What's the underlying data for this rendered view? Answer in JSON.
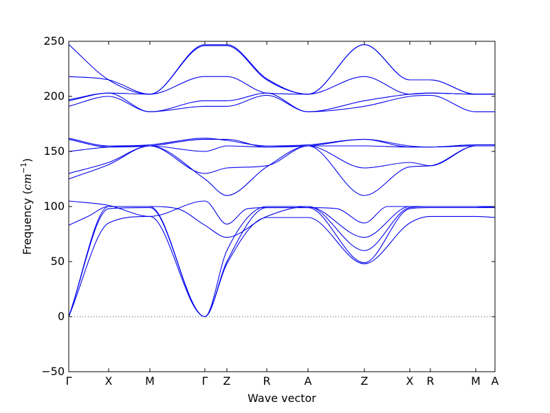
{
  "chart_data": {
    "type": "line",
    "xlabel": "Wave vector",
    "ylabel_text": "Frequency (",
    "ylabel_unit": "cm",
    "ylabel_exp": "−1",
    "ylabel_close": ")",
    "ylim": [
      -50,
      250
    ],
    "yticks": [
      -50,
      0,
      50,
      100,
      150,
      200,
      250
    ],
    "xlim": [
      0,
      3.1
    ],
    "xticks": [
      {
        "label": "Γ",
        "x": 0.0
      },
      {
        "label": "X",
        "x": 0.29
      },
      {
        "label": "M",
        "x": 0.59
      },
      {
        "label": "Γ",
        "x": 0.99
      },
      {
        "label": "Z",
        "x": 1.15
      },
      {
        "label": "R",
        "x": 1.44
      },
      {
        "label": "A",
        "x": 1.74
      },
      {
        "label": "Z",
        "x": 2.15
      },
      {
        "label": "X",
        "x": 2.48
      },
      {
        "label": "R",
        "x": 2.63
      },
      {
        "label": "M",
        "x": 2.96
      },
      {
        "label": "A",
        "x": 3.1
      }
    ],
    "zero_line": true,
    "line_color": "#0000ee",
    "series": [
      {
        "x": [
          0,
          0.29,
          0.59,
          0.99,
          1.15,
          1.44,
          1.74,
          2.15,
          2.48,
          2.63,
          2.96,
          3.1
        ],
        "y": [
          0,
          85,
          91,
          0,
          48,
          90,
          90,
          48,
          85,
          91,
          91,
          90
        ]
      },
      {
        "x": [
          0,
          0.29,
          0.59,
          0.99,
          1.15,
          1.44,
          1.74,
          2.15,
          2.48,
          2.63,
          2.96,
          3.1
        ],
        "y": [
          0,
          98,
          99,
          0,
          50,
          99,
          99,
          49,
          98,
          99,
          99,
          99
        ]
      },
      {
        "x": [
          0,
          0.29,
          0.59,
          0.99,
          1.15,
          1.44,
          1.74,
          2.15,
          2.48,
          2.63,
          2.96,
          3.1
        ],
        "y": [
          0,
          100,
          100,
          0,
          60,
          100,
          100,
          60,
          99,
          100,
          100,
          99
        ]
      },
      {
        "x": [
          0,
          0.14,
          0.29,
          0.59,
          0.79,
          0.99,
          1.15,
          1.44,
          1.74,
          2.15,
          2.48,
          2.63,
          2.96,
          3.1
        ],
        "y": [
          83,
          91,
          100,
          100,
          98,
          83,
          72,
          91,
          100,
          72,
          100,
          100,
          100,
          99
        ]
      },
      {
        "x": [
          0,
          0.29,
          0.59,
          0.99,
          1.15,
          1.3,
          1.44,
          1.74,
          1.95,
          2.15,
          2.32,
          2.48,
          2.63,
          2.96,
          3.1
        ],
        "y": [
          105,
          101,
          91,
          105,
          84,
          98,
          99,
          99,
          98,
          85,
          100,
          100,
          100,
          100,
          100
        ]
      },
      {
        "x": [
          0,
          0.29,
          0.59,
          0.99,
          1.15,
          1.44,
          1.74,
          2.15,
          2.48,
          2.63,
          2.96,
          3.1
        ],
        "y": [
          125,
          138,
          155,
          125,
          110,
          136,
          155,
          110,
          136,
          137,
          155,
          155
        ]
      },
      {
        "x": [
          0,
          0.29,
          0.59,
          0.99,
          1.15,
          1.44,
          1.74,
          2.15,
          2.48,
          2.63,
          2.96,
          3.1
        ],
        "y": [
          130,
          140,
          155,
          130,
          135,
          137,
          155,
          135,
          140,
          137,
          155,
          155
        ]
      },
      {
        "x": [
          0,
          0.29,
          0.59,
          0.99,
          1.15,
          1.44,
          1.74,
          2.15,
          2.48,
          2.63,
          2.96,
          3.1
        ],
        "y": [
          150,
          154,
          155,
          150,
          155,
          154,
          155,
          155,
          154,
          154,
          155,
          155
        ]
      },
      {
        "x": [
          0,
          0.29,
          0.59,
          0.99,
          1.15,
          1.44,
          1.74,
          2.15,
          2.48,
          2.63,
          2.96,
          3.1
        ],
        "y": [
          161,
          154,
          155,
          161,
          161,
          154,
          155,
          161,
          154,
          154,
          156,
          156
        ]
      },
      {
        "x": [
          0,
          0.29,
          0.59,
          0.99,
          1.15,
          1.44,
          1.74,
          2.15,
          2.48,
          2.63,
          2.96,
          3.1
        ],
        "y": [
          162,
          155,
          156,
          162,
          160,
          155,
          156,
          161,
          155,
          154,
          156,
          156
        ]
      },
      {
        "x": [
          0,
          0.29,
          0.59,
          0.99,
          1.15,
          1.44,
          1.74,
          2.15,
          2.48,
          2.63,
          2.96,
          3.1
        ],
        "y": [
          191,
          200,
          186,
          191,
          191,
          201,
          186,
          191,
          200,
          201,
          186,
          186
        ]
      },
      {
        "x": [
          0,
          0.29,
          0.59,
          0.99,
          1.15,
          1.44,
          1.74,
          2.15,
          2.48,
          2.63,
          2.96,
          3.1
        ],
        "y": [
          196,
          203,
          186,
          196,
          196,
          203,
          186,
          196,
          202,
          203,
          202,
          202
        ]
      },
      {
        "x": [
          0,
          0.29,
          0.59,
          0.99,
          1.15,
          1.44,
          1.74,
          2.15,
          2.48,
          2.63,
          2.96,
          3.1
        ],
        "y": [
          197,
          203,
          202,
          218,
          218,
          203,
          202,
          218,
          202,
          203,
          202,
          202
        ]
      },
      {
        "x": [
          0,
          0.29,
          0.59,
          0.99,
          1.15,
          1.44,
          1.74,
          2.15,
          2.48,
          2.63,
          2.96,
          3.1
        ],
        "y": [
          218,
          215,
          202,
          246,
          246,
          215,
          202,
          247,
          215,
          215,
          202,
          202
        ]
      },
      {
        "x": [
          0,
          0.29,
          0.59,
          0.99,
          1.15,
          1.44,
          1.74,
          2.15,
          2.48,
          2.63,
          2.96,
          3.1
        ],
        "y": [
          247,
          215,
          202,
          247,
          247,
          216,
          202,
          247,
          215,
          215,
          202,
          202
        ]
      }
    ]
  }
}
